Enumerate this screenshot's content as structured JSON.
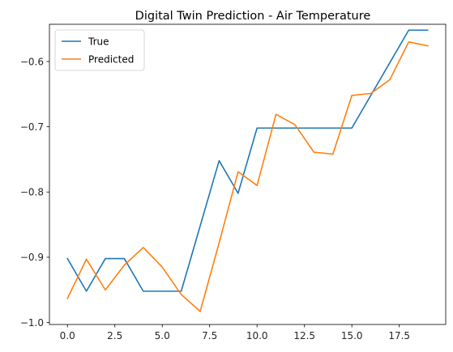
{
  "chart_data": {
    "type": "line",
    "title": "Digital Twin Prediction - Air Temperature",
    "xlabel": "",
    "ylabel": "",
    "xlim": [
      -0.95,
      19.95
    ],
    "ylim": [
      -1.003,
      -0.543
    ],
    "x_ticks": [
      0,
      2.5,
      5,
      7.5,
      10,
      12.5,
      15,
      17.5
    ],
    "x_tick_labels": [
      "0.0",
      "2.5",
      "5.0",
      "7.5",
      "10.0",
      "12.5",
      "15.0",
      "17.5"
    ],
    "y_ticks": [
      -1.0,
      -0.9,
      -0.8,
      -0.7,
      -0.6
    ],
    "y_tick_labels": [
      "−1.0",
      "−0.9",
      "−0.8",
      "−0.7",
      "−0.6"
    ],
    "grid": false,
    "legend_position": "top-left",
    "x": [
      0,
      1,
      2,
      3,
      4,
      5,
      6,
      7,
      8,
      9,
      10,
      11,
      12,
      13,
      14,
      15,
      16,
      17,
      18,
      19
    ],
    "series": [
      {
        "name": "True",
        "color": "#1f77b4",
        "values": [
          -0.902,
          -0.952,
          -0.902,
          -0.902,
          -0.952,
          -0.952,
          -0.952,
          -0.852,
          -0.752,
          -0.802,
          -0.702,
          -0.702,
          -0.702,
          -0.702,
          -0.702,
          -0.702,
          -0.652,
          -0.602,
          -0.552,
          -0.552
        ]
      },
      {
        "name": "Predicted",
        "color": "#ff7f0e",
        "values": [
          -0.963,
          -0.903,
          -0.95,
          -0.912,
          -0.885,
          -0.915,
          -0.957,
          -0.983,
          -0.878,
          -0.769,
          -0.79,
          -0.681,
          -0.697,
          -0.739,
          -0.742,
          -0.652,
          -0.649,
          -0.628,
          -0.57,
          -0.576
        ]
      }
    ]
  }
}
